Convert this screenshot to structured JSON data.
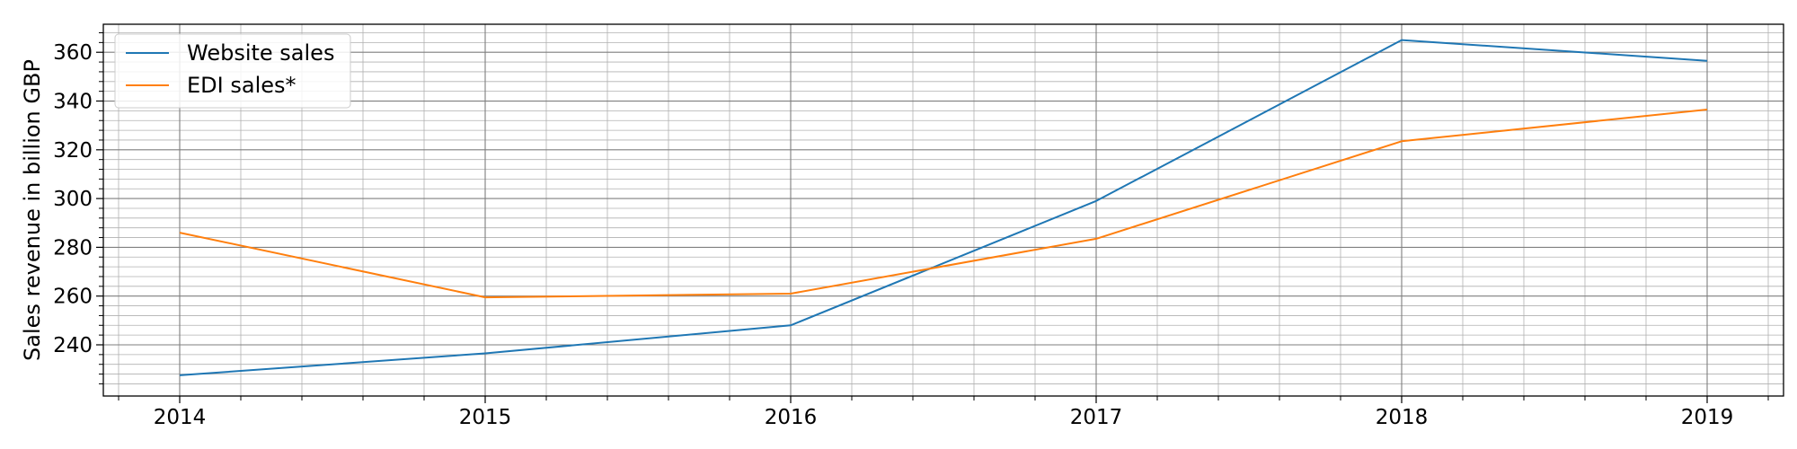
{
  "chart_data": {
    "type": "line",
    "x": [
      2014,
      2015,
      2016,
      2017,
      2018,
      2019
    ],
    "series": [
      {
        "name": "Website sales",
        "values": [
          227.5,
          236.5,
          248,
          299,
          365,
          356.5
        ],
        "color": "#1f77b4"
      },
      {
        "name": "EDI sales*",
        "values": [
          286,
          259.5,
          261,
          283.5,
          323.5,
          336.5
        ],
        "color": "#ff7f0e"
      }
    ],
    "xlabel": "",
    "ylabel": "Sales revenue in billion GBP",
    "xlim": [
      2013.75,
      2019.25
    ],
    "ylim": [
      219,
      371.5
    ],
    "x_ticks": [
      "2014",
      "2015",
      "2016",
      "2017",
      "2018",
      "2019"
    ],
    "y_ticks": [
      240,
      260,
      280,
      300,
      320,
      340,
      360
    ],
    "grid": "major and minor",
    "legend_position": "top-left"
  }
}
